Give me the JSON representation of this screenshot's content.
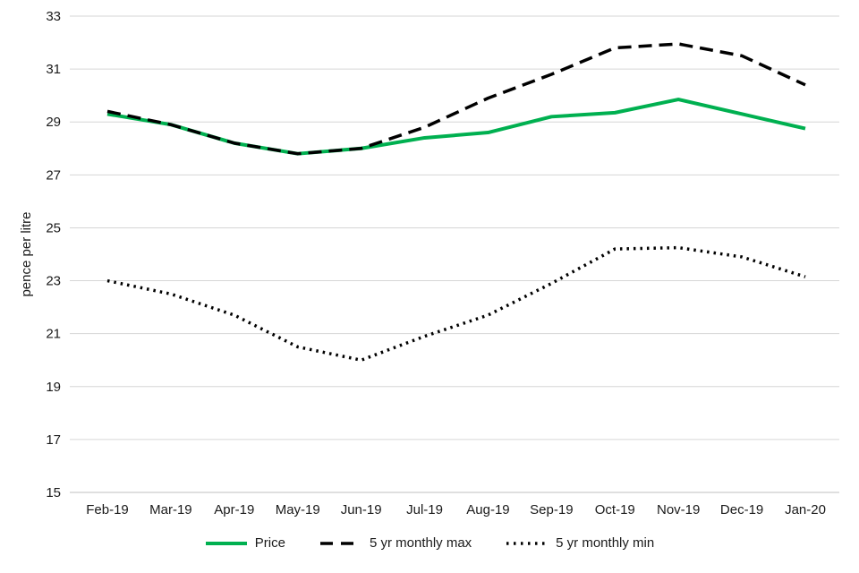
{
  "chart_data": {
    "type": "line",
    "categories": [
      "Feb-19",
      "Mar-19",
      "Apr-19",
      "May-19",
      "Jun-19",
      "Jul-19",
      "Aug-19",
      "Sep-19",
      "Oct-19",
      "Nov-19",
      "Dec-19",
      "Jan-20"
    ],
    "series": [
      {
        "id": "price",
        "name": "Price",
        "color": "#00B050",
        "width": 4,
        "dash": "",
        "values": [
          29.3,
          28.9,
          28.2,
          27.8,
          28.0,
          28.4,
          28.6,
          29.2,
          29.35,
          29.85,
          29.3,
          28.75
        ]
      },
      {
        "id": "max",
        "name": "5 yr monthly max",
        "color": "#000000",
        "width": 3.5,
        "dash": "15 8",
        "legend_dash": "14 9",
        "values": [
          29.4,
          28.9,
          28.2,
          27.8,
          28.0,
          28.8,
          29.9,
          30.8,
          31.8,
          31.95,
          31.5,
          30.4
        ]
      },
      {
        "id": "min",
        "name": "5 yr monthly min",
        "color": "#000000",
        "width": 3.5,
        "dash": "2.5 5",
        "legend_dash": "2.5 5.5",
        "values": [
          23.0,
          22.5,
          21.7,
          20.5,
          20.0,
          20.9,
          21.7,
          22.9,
          24.2,
          24.25,
          23.9,
          23.15
        ]
      }
    ],
    "ylabel": "pence per litre",
    "xlabel": "",
    "ylim": [
      15,
      33
    ],
    "ytick_step": 2,
    "grid": true,
    "legend_position": "bottom",
    "colors": {
      "grid": "#D6D6D6",
      "axis": "#BFBFBF",
      "text": "#1a1a1a"
    }
  }
}
